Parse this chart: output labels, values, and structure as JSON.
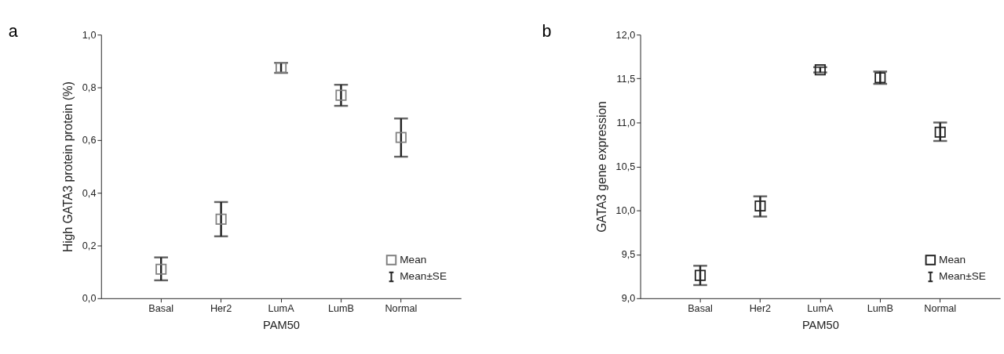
{
  "chart_data": [
    {
      "type": "scatter",
      "title": "a",
      "xlabel": "PAM50",
      "ylabel": "High GATA3 protein protein (%)",
      "categories": [
        "Basal",
        "Her2",
        "LumA",
        "LumB",
        "Normal"
      ],
      "series": [
        {
          "name": "Mean",
          "color": "#808080",
          "values": [
            0.11,
            0.3,
            0.875,
            0.77,
            0.61
          ],
          "errors": [
            [
              0.068,
              0.155
            ],
            [
              0.235,
              0.365
            ],
            [
              0.855,
              0.893
            ],
            [
              0.73,
              0.81
            ],
            [
              0.537,
              0.682
            ]
          ]
        }
      ],
      "ylim": [
        0,
        1
      ],
      "yticks": [
        {
          "value": 0,
          "label": "0,0"
        },
        {
          "value": 0.2,
          "label": "0,2"
        },
        {
          "value": 0.4,
          "label": "0,4"
        },
        {
          "value": 0.6,
          "label": "0,6"
        },
        {
          "value": 0.8,
          "label": "0,8"
        },
        {
          "value": 1,
          "label": "1,0"
        }
      ],
      "annotations": [
        "Mean±SE"
      ],
      "marker": "square",
      "legend": "bottom right",
      "grid": false
    },
    {
      "type": "scatter",
      "title": "b",
      "xlabel": "PAM50",
      "ylabel": "GATA3 gene expression",
      "categories": [
        "Basal",
        "Her2",
        "LumA",
        "LumB",
        "Normal"
      ],
      "series": [
        {
          "name": "Mean",
          "color": "#222222",
          "values": [
            9.26,
            10.05,
            11.6,
            11.51,
            10.89
          ],
          "errors": [
            [
              9.15,
              9.37
            ],
            [
              9.93,
              10.16
            ],
            [
              11.57,
              11.63
            ],
            [
              11.44,
              11.58
            ],
            [
              10.79,
              11.0
            ]
          ]
        }
      ],
      "ylim": [
        9,
        12
      ],
      "yticks": [
        {
          "value": 9,
          "label": "9,0"
        },
        {
          "value": 9.5,
          "label": "9,5"
        },
        {
          "value": 10,
          "label": "10,0"
        },
        {
          "value": 10.5,
          "label": "10,5"
        },
        {
          "value": 11,
          "label": "11,0"
        },
        {
          "value": 11.5,
          "label": "11,5"
        },
        {
          "value": 12,
          "label": "12,0"
        }
      ],
      "annotations": [
        "Mean±SE"
      ],
      "marker": "square",
      "legend": "bottom right",
      "grid": false
    }
  ]
}
